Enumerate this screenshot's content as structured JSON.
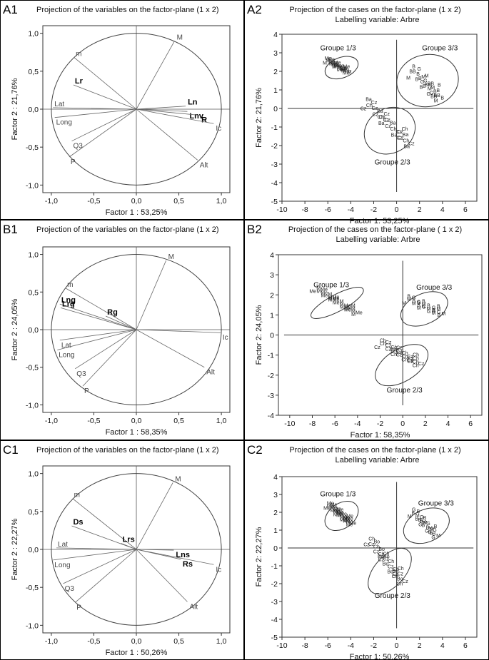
{
  "chart_data": [
    {
      "panel_label": "A1",
      "type": "scatter",
      "subtype": "correlation-circle",
      "title": "Projection of the variables on the factor-plane (1 x 2)",
      "xlabel": "Factor 1 : 53,25%",
      "ylabel": "Factor 2 : 21,76%",
      "xlim": [
        -1.1,
        1.1
      ],
      "ylim": [
        -1.1,
        1.1
      ],
      "xticks": [
        "-1,0",
        "-0,5",
        "0,0",
        "0,5",
        "1,0"
      ],
      "yticks": [
        "-1,0",
        "-0,5",
        "0,0",
        "0,5",
        "1,0"
      ],
      "variables": [
        {
          "name": "M",
          "x": 0.45,
          "y": 0.9
        },
        {
          "name": "m",
          "x": -0.73,
          "y": 0.68
        },
        {
          "name": "Lr",
          "x": -0.74,
          "y": 0.32,
          "bold": true
        },
        {
          "name": "Ln",
          "x": 0.58,
          "y": 0.04,
          "bold": true
        },
        {
          "name": "Lnv",
          "x": 0.6,
          "y": -0.03,
          "bold": true
        },
        {
          "name": "R",
          "x": 0.74,
          "y": -0.08,
          "bold": true
        },
        {
          "name": "Ic",
          "x": 0.91,
          "y": -0.19
        },
        {
          "name": "Lat",
          "x": -0.98,
          "y": 0.02
        },
        {
          "name": "Long",
          "x": -0.96,
          "y": -0.11
        },
        {
          "name": "Q3",
          "x": -0.76,
          "y": -0.42
        },
        {
          "name": "P",
          "x": -0.79,
          "y": -0.63
        },
        {
          "name": "Alt",
          "x": 0.72,
          "y": -0.67
        }
      ]
    },
    {
      "panel_label": "A2",
      "type": "scatter",
      "subtype": "cases",
      "title": "Projection of the cases on the factor-plane (1 x 2)",
      "subtitle": "Labelling variable: Arbre",
      "xlabel": "Factor 1: 53,25%",
      "ylabel": "Factor 2: 21,76%",
      "xlim": [
        -10,
        7
      ],
      "ylim": [
        -5,
        4
      ],
      "xticks": [
        "-10",
        "-8",
        "-6",
        "-4",
        "-2",
        "0",
        "2",
        "4",
        "6"
      ],
      "yticks": [
        "-5",
        "-4",
        "-3",
        "-2",
        "-1",
        "0",
        "1",
        "2",
        "3",
        "4"
      ],
      "groups": [
        {
          "name": "Groupe 1/3",
          "center": [
            -4.8,
            2.2
          ],
          "rx": 1.5,
          "ry": 0.55,
          "angle": -20,
          "labels": [
            "M",
            "Me",
            "Me"
          ],
          "points": [
            [
              -6.0,
              2.5
            ],
            [
              -4.2,
              1.9
            ]
          ]
        },
        {
          "name": "Groupe 3/3",
          "center": [
            2.7,
            1.5
          ],
          "rx": 2.7,
          "ry": 1.4,
          "angle": -10,
          "labels": [
            "M",
            "B",
            "G",
            "BB",
            "B"
          ],
          "points": [
            [
              1.5,
              1.9
            ],
            [
              3.8,
              0.5
            ]
          ]
        },
        {
          "name": "Groupe 2/3",
          "center": [
            -0.6,
            -1.2
          ],
          "rx": 2.3,
          "ry": 1.2,
          "angle": -30,
          "labels": [
            "Cz",
            "Ba",
            "Cz",
            "Ch"
          ],
          "points": [
            [
              -2.5,
              0.2
            ],
            [
              1.2,
              -2.0
            ]
          ]
        }
      ]
    },
    {
      "panel_label": "B1",
      "type": "scatter",
      "subtype": "correlation-circle",
      "title": "Projection of the variables on the factor-plane (1 x 2)",
      "xlabel": "Factor 1 : 58,35%",
      "ylabel": "Factor 2 : 24,05%",
      "xlim": [
        -1.1,
        1.1
      ],
      "ylim": [
        -1.1,
        1.1
      ],
      "xticks": [
        "-1,0",
        "-0,5",
        "0,0",
        "0,5",
        "1,0"
      ],
      "yticks": [
        "-1,0",
        "-0,5",
        "0,0",
        "0,5",
        "1,0"
      ],
      "variables": [
        {
          "name": "M",
          "x": 0.35,
          "y": 0.92
        },
        {
          "name": "m",
          "x": -0.83,
          "y": 0.55
        },
        {
          "name": "Lng",
          "x": -0.9,
          "y": 0.34,
          "bold": true
        },
        {
          "name": "Lrg",
          "x": -0.89,
          "y": 0.29,
          "bold": true
        },
        {
          "name": "Rg",
          "x": -0.36,
          "y": 0.18,
          "bold": true
        },
        {
          "name": "Ic",
          "x": 0.99,
          "y": -0.04
        },
        {
          "name": "Lat",
          "x": -0.9,
          "y": -0.14
        },
        {
          "name": "Long",
          "x": -0.93,
          "y": -0.27
        },
        {
          "name": "Q3",
          "x": -0.72,
          "y": -0.52
        },
        {
          "name": "P",
          "x": -0.63,
          "y": -0.75
        },
        {
          "name": "Alt",
          "x": 0.8,
          "y": -0.5
        }
      ]
    },
    {
      "panel_label": "B2",
      "type": "scatter",
      "subtype": "cases",
      "title": "Projection of the cases on the factor-plane ( 1 x 2)",
      "subtitle": "Labelling variable: Arbre",
      "xlabel": "Factor 1: 58,35%",
      "ylabel": "Factor 2: 24,05%",
      "xlim": [
        -11,
        7
      ],
      "ylim": [
        -4,
        4
      ],
      "xticks": [
        "-10",
        "-8",
        "-6",
        "-4",
        "-2",
        "0",
        "2",
        "4",
        "6"
      ],
      "yticks": [
        "-4",
        "-3",
        "-2",
        "-1",
        "0",
        "1",
        "2",
        "3",
        "4"
      ],
      "groups": [
        {
          "name": "Groupe 1/3",
          "center": [
            -5.8,
            1.6
          ],
          "rx": 2.6,
          "ry": 0.42,
          "angle": -28,
          "labels": [
            "Me",
            "M"
          ],
          "points": [
            [
              -7.5,
              2.2
            ],
            [
              -4.0,
              1.0
            ]
          ]
        },
        {
          "name": "Groupe 3/3",
          "center": [
            1.9,
            1.3
          ],
          "rx": 2.2,
          "ry": 0.75,
          "angle": -25,
          "labels": [
            "M",
            "B",
            "G"
          ],
          "points": [
            [
              0.5,
              1.7
            ],
            [
              3.5,
              1.0
            ]
          ]
        },
        {
          "name": "Groupe 2/3",
          "center": [
            -0.1,
            -1.5
          ],
          "rx": 2.6,
          "ry": 0.8,
          "angle": -32,
          "labels": [
            "Cz",
            "Ch"
          ],
          "points": [
            [
              -1.8,
              -0.5
            ],
            [
              1.5,
              -1.5
            ]
          ]
        }
      ]
    },
    {
      "panel_label": "C1",
      "type": "scatter",
      "subtype": "correlation-circle",
      "title": "Projection of the variables on the factor-plane (1 x 2)",
      "xlabel": "Factor 1 : 50,26%",
      "ylabel": "Factor 2 : 22,27%",
      "xlim": [
        -1.1,
        1.1
      ],
      "ylim": [
        -1.1,
        1.1
      ],
      "xticks": [
        "-1,0",
        "-0,5",
        "0,0",
        "0,5",
        "1,0"
      ],
      "yticks": [
        "-1,0",
        "-0,5",
        "0,0",
        "0,5",
        "1,0"
      ],
      "variables": [
        {
          "name": "M",
          "x": 0.43,
          "y": 0.88
        },
        {
          "name": "m",
          "x": -0.75,
          "y": 0.67
        },
        {
          "name": "Ds",
          "x": -0.76,
          "y": 0.31,
          "bold": true
        },
        {
          "name": "Lrs",
          "x": -0.18,
          "y": 0.08,
          "bold": true
        },
        {
          "name": "Lns",
          "x": 0.44,
          "y": -0.01,
          "bold": true
        },
        {
          "name": "Rs",
          "x": 0.52,
          "y": -0.13,
          "bold": true
        },
        {
          "name": "Ic",
          "x": 0.91,
          "y": -0.2
        },
        {
          "name": "Lat",
          "x": -0.94,
          "y": 0.02
        },
        {
          "name": "Long",
          "x": -0.98,
          "y": -0.14
        },
        {
          "name": "Q3",
          "x": -0.86,
          "y": -0.45
        },
        {
          "name": "P",
          "x": -0.72,
          "y": -0.7
        },
        {
          "name": "Alt",
          "x": 0.6,
          "y": -0.69
        }
      ]
    },
    {
      "panel_label": "C2",
      "type": "scatter",
      "subtype": "cases",
      "title": "Projection of the cases on the factor-plane (1 x 2)",
      "subtitle": "Labelling variable: Arbre",
      "xlabel": "Factor 1: 50,26%",
      "ylabel": "Factor 2: 22,27%",
      "xlim": [
        -10,
        7
      ],
      "ylim": [
        -5,
        4
      ],
      "xticks": [
        "-10",
        "-8",
        "-6",
        "-4",
        "-2",
        "0",
        "2",
        "4",
        "6"
      ],
      "yticks": [
        "-5",
        "-4",
        "-3",
        "-2",
        "-1",
        "0",
        "1",
        "2",
        "3",
        "4"
      ],
      "groups": [
        {
          "name": "Groupe 1/3",
          "center": [
            -4.8,
            1.8
          ],
          "rx": 1.6,
          "ry": 0.7,
          "angle": -35,
          "labels": [
            "Me",
            "Me"
          ],
          "points": [
            [
              -5.8,
              2.3
            ],
            [
              -3.9,
              1.3
            ]
          ]
        },
        {
          "name": "Groupe 3/3",
          "center": [
            2.6,
            1.25
          ],
          "rx": 2.1,
          "ry": 0.9,
          "angle": -25,
          "labels": [
            "M",
            "G",
            "B",
            "B"
          ],
          "points": [
            [
              1.5,
              1.9
            ],
            [
              3.5,
              0.6
            ]
          ]
        },
        {
          "name": "Groupe 2/3",
          "center": [
            -0.6,
            -1.3
          ],
          "rx": 2.4,
          "ry": 0.85,
          "angle": -48,
          "labels": [
            "Cz",
            "Ch",
            "Bo"
          ],
          "points": [
            [
              -2.2,
              0.3
            ],
            [
              0.6,
              -2.0
            ]
          ]
        }
      ]
    }
  ]
}
